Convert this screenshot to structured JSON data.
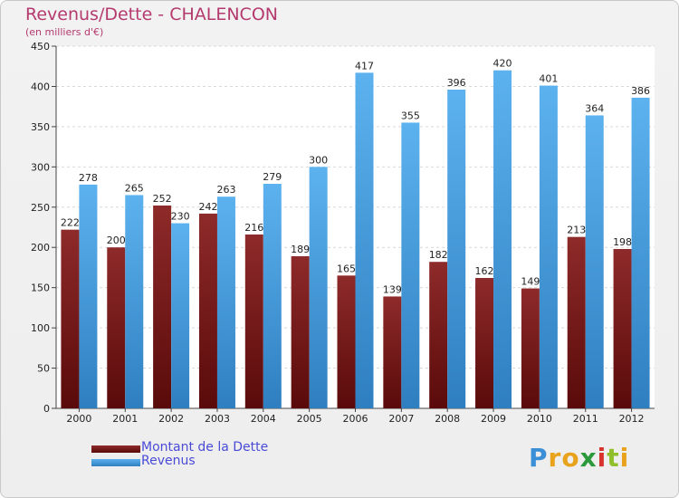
{
  "chart_data": {
    "type": "bar",
    "title": "Revenus/Dette - CHALENCON",
    "subtitle": "(en milliers d'€)",
    "categories": [
      "2000",
      "2001",
      "2002",
      "2003",
      "2004",
      "2005",
      "2006",
      "2007",
      "2008",
      "2009",
      "2010",
      "2011",
      "2012"
    ],
    "series": [
      {
        "name": "Montant de la Dette",
        "color": "#8b1c1c",
        "values": [
          222,
          200,
          252,
          242,
          216,
          189,
          165,
          139,
          182,
          162,
          149,
          213,
          198
        ]
      },
      {
        "name": "Revenus",
        "color": "#4aa3e6",
        "values": [
          278,
          265,
          230,
          263,
          279,
          300,
          417,
          355,
          396,
          420,
          401,
          364,
          386
        ]
      }
    ],
    "ylim": [
      0,
      450
    ],
    "yticks": [
      0,
      50,
      100,
      150,
      200,
      250,
      300,
      350,
      400,
      450
    ],
    "grid": true,
    "legend_position": "bottom-left"
  },
  "brand": {
    "letters": [
      "P",
      "r",
      "o",
      "x",
      "i",
      "t",
      "i"
    ],
    "colors": [
      "#3a8fd6",
      "#e8a21b",
      "#e8a21b",
      "#2c9a3c",
      "#d8322c",
      "#8fbf2a",
      "#e8a21b"
    ]
  }
}
